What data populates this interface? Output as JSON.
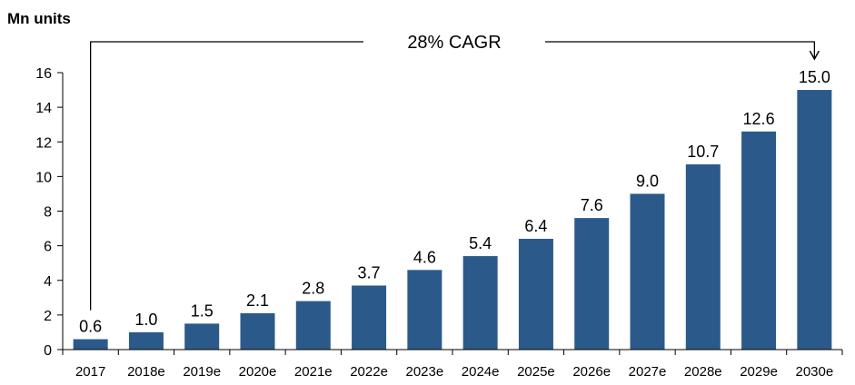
{
  "chart_data": {
    "type": "bar",
    "ylabel": "Mn units",
    "categories": [
      "2017",
      "2018e",
      "2019e",
      "2020e",
      "2021e",
      "2022e",
      "2023e",
      "2024e",
      "2025e",
      "2026e",
      "2027e",
      "2028e",
      "2029e",
      "2030e"
    ],
    "values": [
      0.6,
      1.0,
      1.5,
      2.1,
      2.8,
      3.7,
      4.6,
      5.4,
      6.4,
      7.6,
      9.0,
      10.7,
      12.6,
      15.0
    ],
    "value_labels": [
      "0.6",
      "1.0",
      "1.5",
      "2.1",
      "2.8",
      "3.7",
      "4.6",
      "5.4",
      "6.4",
      "7.6",
      "9.0",
      "10.7",
      "12.6",
      "15.0"
    ],
    "yticks": [
      0,
      2,
      4,
      6,
      8,
      10,
      12,
      14,
      16
    ],
    "ylim": [
      0,
      16
    ],
    "grid": false,
    "bar_color": "#2b5a8a",
    "annotation": "28% CAGR"
  }
}
